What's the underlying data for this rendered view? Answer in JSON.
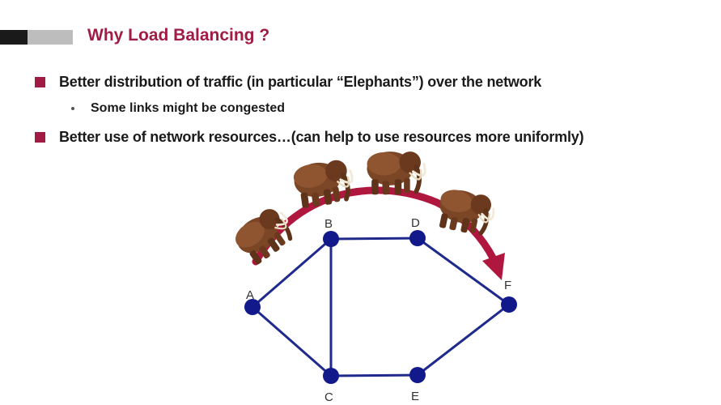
{
  "slide": {
    "title": "Why Load Balancing ?",
    "bullets": [
      "Better distribution of traffic (in particular “Elephants”) over the network",
      "Better use of network resources…(can help to use resources more uniformly)"
    ],
    "sub_bullets": [
      "Some links might be congested"
    ]
  },
  "diagram": {
    "nodes": [
      "A",
      "B",
      "C",
      "D",
      "E",
      "F"
    ],
    "edges": [
      [
        "A",
        "B"
      ],
      [
        "A",
        "C"
      ],
      [
        "B",
        "C"
      ],
      [
        "B",
        "D"
      ],
      [
        "C",
        "E"
      ],
      [
        "D",
        "F"
      ],
      [
        "E",
        "F"
      ]
    ],
    "arrow": {
      "from": "A",
      "to": "F",
      "color": "#b0173f"
    },
    "node_color": "#12198a",
    "edge_color": "#1f2a8c",
    "decoration_icons": [
      "mammoth-icon",
      "mammoth-icon",
      "mammoth-icon",
      "mammoth-icon"
    ]
  },
  "colors": {
    "accent": "#a01c45",
    "text": "#1a1a1a"
  }
}
